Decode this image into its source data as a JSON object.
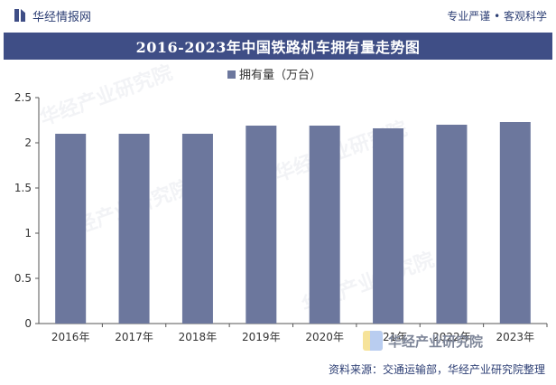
{
  "header": {
    "brand": "华经情报网",
    "slogan": "专业严谨 • 客观科学"
  },
  "watermark": {
    "cn": "华经产业研究院",
    "en": "www.huaon.com"
  },
  "footer": {
    "source": "资料来源：交通运输部，华经产业研究院整理",
    "logo_name": "华经产业研究院",
    "logo_url": "www.huaon.com"
  },
  "colors": {
    "bar": "#6c779d",
    "title_bg": "#3f4e86"
  },
  "chart_data": {
    "type": "bar",
    "title": "2016-2023年中国铁路机车拥有量走势图",
    "xlabel": "",
    "ylabel": "",
    "categories": [
      "2016年",
      "2017年",
      "2018年",
      "2019年",
      "2020年",
      "2021年",
      "2022年",
      "2023年"
    ],
    "series": [
      {
        "name": "拥有量（万台）",
        "values": [
          2.1,
          2.1,
          2.1,
          2.19,
          2.19,
          2.16,
          2.2,
          2.23
        ]
      }
    ],
    "ylim": [
      0,
      2.5
    ],
    "yticks": [
      "0",
      "0.5",
      "1",
      "1.5",
      "2",
      "2.5"
    ],
    "legend": "top-center",
    "grid": false
  }
}
